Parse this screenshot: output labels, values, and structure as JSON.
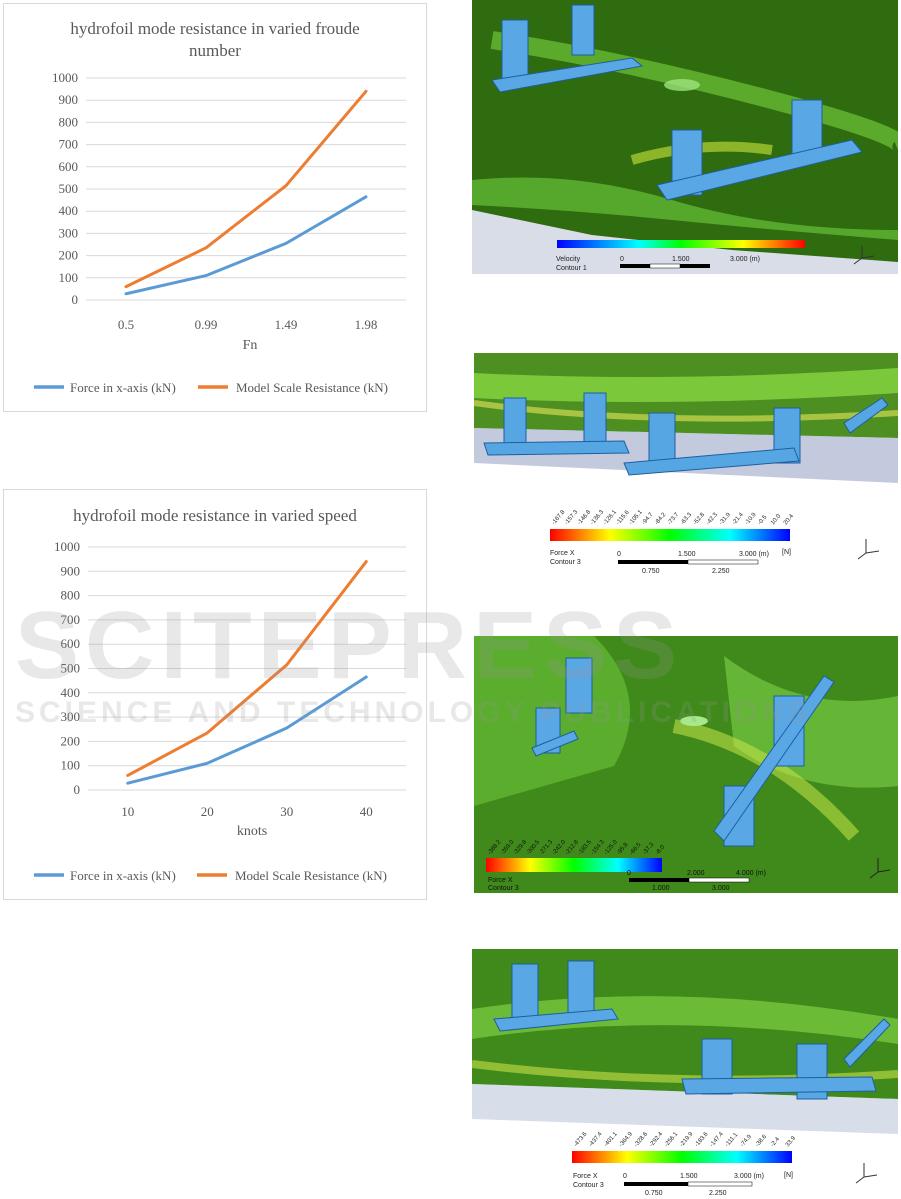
{
  "colors": {
    "force": "#5b9bd5",
    "model": "#ed7d31",
    "grid": "#d9d9d9",
    "text": "#595959"
  },
  "chart_data": [
    {
      "type": "line",
      "title_lines": [
        "hydrofoil mode resistance in varied froude",
        "number"
      ],
      "xlabel": "Fn",
      "ylabel": "",
      "categories": [
        "0.5",
        "0.99",
        "1.49",
        "1.98"
      ],
      "ylim": [
        0,
        1000
      ],
      "yticks": [
        "0",
        "100",
        "200",
        "300",
        "400",
        "500",
        "600",
        "700",
        "800",
        "900",
        "1000"
      ],
      "grid": true,
      "legend": "bottom",
      "series": [
        {
          "name": "Force in x-axis (kN)",
          "values": [
            28,
            110,
            255,
            465
          ]
        },
        {
          "name": "Model Scale Resistance (kN)",
          "values": [
            60,
            235,
            515,
            940
          ]
        }
      ]
    },
    {
      "type": "line",
      "title_lines": [
        "hydrofoil mode resistance in varied speed"
      ],
      "xlabel": "knots",
      "ylabel": "",
      "categories": [
        "10",
        "20",
        "30",
        "40"
      ],
      "ylim": [
        0,
        1000
      ],
      "yticks": [
        "0",
        "100",
        "200",
        "300",
        "400",
        "500",
        "600",
        "700",
        "800",
        "900",
        "1000"
      ],
      "grid": true,
      "legend": "bottom",
      "series": [
        {
          "name": "Force in x-axis (kN)",
          "values": [
            28,
            110,
            255,
            465
          ]
        },
        {
          "name": "Model Scale Resistance (kN)",
          "values": [
            60,
            235,
            515,
            940
          ]
        }
      ]
    }
  ],
  "watermark": {
    "main": "SCITEPRESS",
    "sub": "SCIENCE AND TECHNOLOGY PUBLICATIONS"
  },
  "sim1": {
    "legend_title": "Velocity",
    "contour": "Contour 1",
    "scale_labels": [
      "0",
      "1.500",
      "3.000 (m)"
    ]
  },
  "sim2": {
    "ticks": [
      "-167.8",
      "-157.3",
      "-146.8",
      "-136.3",
      "-126.1",
      "-115.6",
      "-105.1",
      "-94.7",
      "-84.2",
      "-73.7",
      "-63.3",
      "-52.8",
      "-42.3",
      "-31.9",
      "-21.4",
      "-10.9",
      "-0.5",
      "10.0",
      "20.4"
    ],
    "field": "Force X",
    "unit": "[N]",
    "contour": "Contour 3",
    "scale_labels": [
      "0",
      "1.500",
      "3.000 (m)"
    ],
    "scale_sub": [
      "0.750",
      "2.250"
    ]
  },
  "sim3": {
    "ticks": [
      "-388.2",
      "-359.0",
      "-329.8",
      "-300.5",
      "-271.3",
      "-242.0",
      "-212.8",
      "-183.5",
      "-154.3",
      "-125.0",
      "-95.8",
      "-66.5",
      "-37.3",
      "-8.0"
    ],
    "field": "Force X",
    "contour": "Contour 3",
    "scale_labels": [
      "0",
      "2.000",
      "4.000 (m)"
    ],
    "scale_sub": [
      "1.000",
      "3.000"
    ]
  },
  "sim4": {
    "ticks": [
      "-473.6",
      "-437.4",
      "-401.1",
      "-364.9",
      "-328.6",
      "-292.4",
      "-256.1",
      "-219.9",
      "-183.6",
      "-147.4",
      "-111.1",
      "-74.9",
      "-38.6",
      "-2.4",
      "33.9"
    ],
    "field": "Force X",
    "unit": "[N]",
    "contour": "Contour 3",
    "scale_labels": [
      "0",
      "1.500",
      "3.000 (m)"
    ],
    "scale_sub": [
      "0.750",
      "2.250"
    ]
  }
}
